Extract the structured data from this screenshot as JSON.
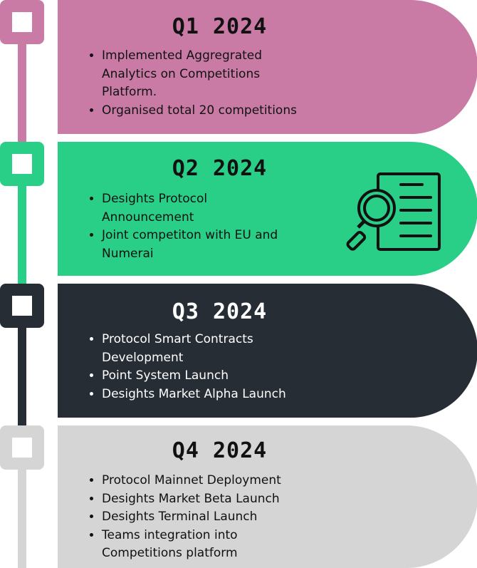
{
  "colors": {
    "q1": "#c97ba6",
    "q2": "#29cf87",
    "q3": "#262d35",
    "q4": "#d5d5d5",
    "text_dark": "#111111",
    "text_light": "#ffffff"
  },
  "milestones": [
    {
      "title": "Q1 2024",
      "items": [
        "Implemented Aggregrated Analytics on Competitions Platform.",
        "Organised total 20 competitions"
      ]
    },
    {
      "title": "Q2 2024",
      "items": [
        "Desights Protocol Announcement",
        "Joint competiton with EU and Numerai"
      ],
      "icon": "document-search-icon"
    },
    {
      "title": "Q3 2024",
      "items": [
        "Protocol Smart Contracts Development",
        "Point System Launch",
        "Desights Market Alpha Launch"
      ]
    },
    {
      "title": "Q4 2024",
      "items": [
        "Protocol Mainnet Deployment",
        "Desights Market Beta Launch",
        "Desights Terminal Launch",
        "Teams integration into Competitions platform"
      ]
    }
  ]
}
